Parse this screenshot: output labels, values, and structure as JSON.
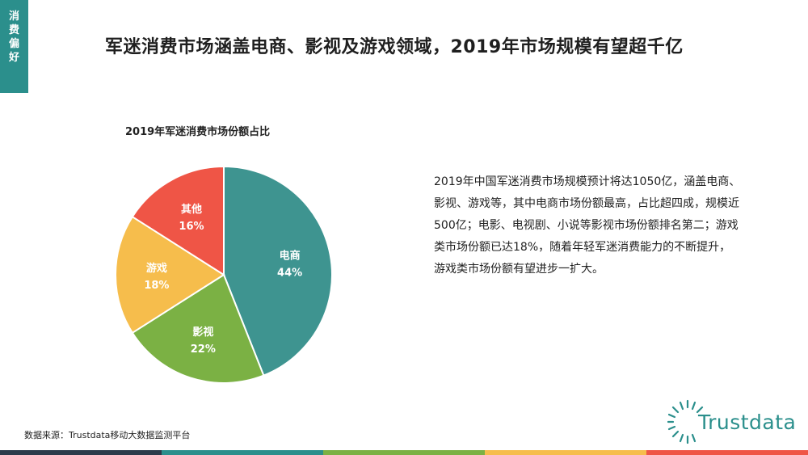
{
  "side_tab": {
    "chars": [
      "消",
      "费",
      "偏",
      "好"
    ]
  },
  "page": {
    "title": "军迷消费市场涵盖电商、影视及游戏领域，2019年市场规模有望超千亿",
    "description": "2019年中国军迷消费市场规模预计将达1050亿，涵盖电商、影视、游戏等，其中电商市场份额最高，占比超四成，规模近500亿；电影、电视剧、小说等影视市场份额排名第二；游戏类市场份额已达18%，随着年轻军迷消费能力的不断提升，游戏类市场份额有望进步一扩大。",
    "source": "数据来源：Trustdata移动大数据监测平台",
    "logo_text": "Trustdata"
  },
  "chart_data": {
    "type": "pie",
    "title": "2019年军迷消费市场份额占比",
    "slices": [
      {
        "label": "电商",
        "value": 44,
        "value_label": "44%",
        "color": "#3e9490"
      },
      {
        "label": "影视",
        "value": 22,
        "value_label": "22%",
        "color": "#7bb144"
      },
      {
        "label": "游戏",
        "value": 18,
        "value_label": "18%",
        "color": "#f6bd4c"
      },
      {
        "label": "其他",
        "value": 16,
        "value_label": "16%",
        "color": "#ef5546"
      }
    ],
    "start": "12 o'clock",
    "direction": "clockwise",
    "legend": "none"
  },
  "colors": {
    "accent": "#2b8f8c",
    "bottom_bar": [
      "#2b3a4a",
      "#2b8f8c",
      "#7bb144",
      "#f6bd4c",
      "#ef5546"
    ]
  }
}
